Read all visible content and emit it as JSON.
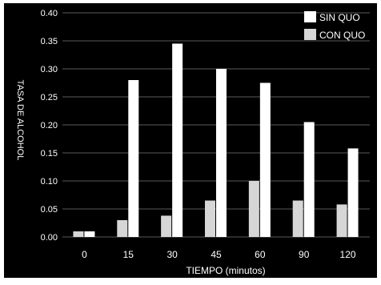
{
  "chart_data": {
    "type": "bar",
    "title": "",
    "xlabel": "TIEMPO (minutos)",
    "ylabel": "TASA DE ALCOHOL",
    "categories": [
      "0",
      "15",
      "30",
      "45",
      "60",
      "90",
      "120"
    ],
    "series": [
      {
        "name": "SIN QUO",
        "values": [
          0.01,
          0.28,
          0.345,
          0.3,
          0.275,
          0.205,
          0.158
        ]
      },
      {
        "name": "CON QUO",
        "values": [
          0.01,
          0.03,
          0.038,
          0.065,
          0.1,
          0.065,
          0.058
        ]
      }
    ],
    "ylim": [
      0,
      0.4
    ],
    "yticks": [
      "0.00",
      "0.05",
      "0.10",
      "0.15",
      "0.20",
      "0.25",
      "0.30",
      "0.35",
      "0.40"
    ],
    "grid": true,
    "legend_position": "top-right",
    "colors": {
      "background": "#000000",
      "frame": "#ffffff",
      "grid": "#5a5a5a",
      "sin_quo": "#ffffff",
      "con_quo": "#d6d6d6",
      "text": "#ffffff"
    }
  }
}
